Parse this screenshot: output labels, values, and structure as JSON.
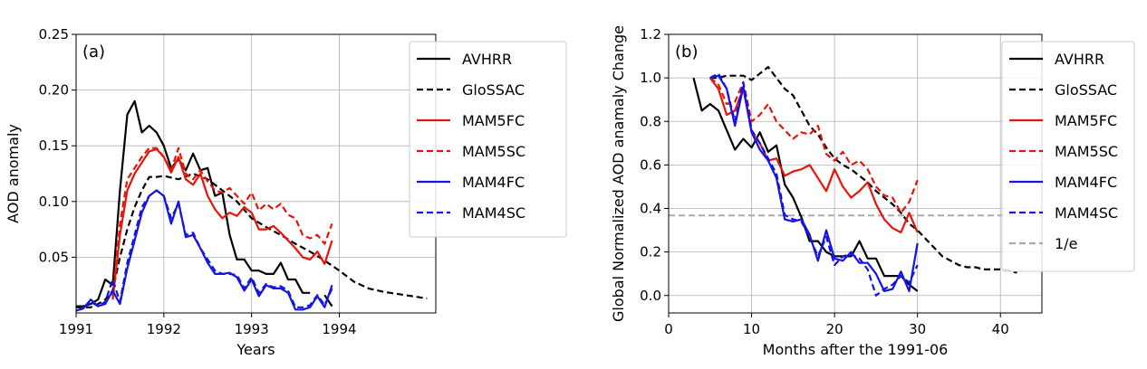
{
  "chart_data": [
    {
      "type": "line",
      "panel_label": "(a)",
      "xlabel": "Years",
      "ylabel": "AOD anomaly",
      "xlim": [
        1991,
        1995.1
      ],
      "ylim": [
        0,
        0.25
      ],
      "xticks": [
        1991,
        1992,
        1993,
        1994
      ],
      "xtick_labels": [
        "1991",
        "1992",
        "1993",
        "1994"
      ],
      "yticks": [
        0.05,
        0.1,
        0.15,
        0.2,
        0.25
      ],
      "ytick_labels": [
        "0.05",
        "0.10",
        "0.15",
        "0.20",
        "0.25"
      ],
      "grid": true,
      "legend_position": "top-right",
      "series": [
        {
          "name": "AVHRR",
          "color": "#000000",
          "dash": "solid",
          "x": [
            1991.0,
            1991.083,
            1991.167,
            1991.25,
            1991.333,
            1991.417,
            1991.5,
            1991.583,
            1991.667,
            1991.75,
            1991.833,
            1991.917,
            1992.0,
            1992.083,
            1992.167,
            1992.25,
            1992.333,
            1992.417,
            1992.5,
            1992.583,
            1992.667,
            1992.75,
            1992.833,
            1992.917,
            1993.0,
            1993.083,
            1993.167,
            1993.25,
            1993.333,
            1993.417,
            1993.5,
            1993.583,
            1993.667,
            1993.75,
            1993.833,
            1993.917
          ],
          "y": [
            0.006,
            0.006,
            0.008,
            0.012,
            0.03,
            0.025,
            0.11,
            0.178,
            0.19,
            0.162,
            0.168,
            0.162,
            0.15,
            0.13,
            0.138,
            0.128,
            0.143,
            0.128,
            0.13,
            0.105,
            0.108,
            0.07,
            0.048,
            0.048,
            0.038,
            0.038,
            0.035,
            0.035,
            0.045,
            0.03,
            0.03,
            0.018,
            0.018,
            null,
            0.016,
            0.006
          ]
        },
        {
          "name": "GloSSAC",
          "color": "#000000",
          "dash": "dashed",
          "x": [
            1991.0,
            1991.083,
            1991.167,
            1991.25,
            1991.333,
            1991.417,
            1991.5,
            1991.583,
            1991.667,
            1991.75,
            1991.833,
            1991.917,
            1992.0,
            1992.167,
            1992.333,
            1992.5,
            1992.667,
            1992.833,
            1993.0,
            1993.167,
            1993.333,
            1993.5,
            1993.667,
            1993.833,
            1994.0,
            1994.167,
            1994.333,
            1994.5,
            1994.667,
            1994.833,
            1995.0
          ],
          "y": [
            0.005,
            0.005,
            0.005,
            0.008,
            0.012,
            0.02,
            0.05,
            0.075,
            0.095,
            0.11,
            0.122,
            0.122,
            0.123,
            0.12,
            0.125,
            0.12,
            0.11,
            0.1,
            0.085,
            0.077,
            0.07,
            0.062,
            0.055,
            0.047,
            0.038,
            0.028,
            0.022,
            0.019,
            0.017,
            0.015,
            0.013
          ]
        },
        {
          "name": "MAM5FC",
          "color": "#e8140a",
          "dash": "solid",
          "x": [
            1991.417,
            1991.5,
            1991.583,
            1991.667,
            1991.75,
            1991.833,
            1991.917,
            1992.0,
            1992.083,
            1992.167,
            1992.25,
            1992.333,
            1992.417,
            1992.5,
            1992.583,
            1992.667,
            1992.75,
            1992.833,
            1992.917,
            1993.0,
            1993.083,
            1993.167,
            1993.25,
            1993.333,
            1993.417,
            1993.5,
            1993.583,
            1993.667,
            1993.75,
            1993.833,
            1993.917
          ],
          "y": [
            0.012,
            0.07,
            0.11,
            0.125,
            0.135,
            0.145,
            0.147,
            0.14,
            0.126,
            0.14,
            0.12,
            0.115,
            0.125,
            0.105,
            0.093,
            0.085,
            0.09,
            0.087,
            0.095,
            0.09,
            0.075,
            0.075,
            0.078,
            0.072,
            0.065,
            0.058,
            0.05,
            0.048,
            0.055,
            0.044,
            0.065
          ]
        },
        {
          "name": "MAM5SC",
          "color": "#e8140a",
          "dash": "dashed",
          "x": [
            1991.417,
            1991.5,
            1991.583,
            1991.667,
            1991.75,
            1991.833,
            1991.917,
            1992.0,
            1992.083,
            1992.167,
            1992.25,
            1992.333,
            1992.417,
            1992.5,
            1992.583,
            1992.667,
            1992.75,
            1992.833,
            1992.917,
            1993.0,
            1993.083,
            1993.167,
            1993.25,
            1993.333,
            1993.417,
            1993.5,
            1993.583,
            1993.667,
            1993.75,
            1993.833,
            1993.917
          ],
          "y": [
            0.015,
            0.08,
            0.12,
            0.13,
            0.14,
            0.148,
            0.148,
            0.14,
            0.128,
            0.148,
            0.125,
            0.12,
            0.128,
            0.118,
            0.11,
            0.108,
            0.112,
            0.105,
            0.098,
            0.108,
            0.092,
            0.098,
            0.093,
            0.098,
            0.088,
            0.085,
            0.07,
            0.067,
            0.07,
            0.062,
            0.08
          ]
        },
        {
          "name": "MAM4FC",
          "color": "#1414e6",
          "dash": "solid",
          "x": [
            1991.0,
            1991.083,
            1991.167,
            1991.25,
            1991.333,
            1991.417,
            1991.5,
            1991.583,
            1991.667,
            1991.75,
            1991.833,
            1991.917,
            1992.0,
            1992.083,
            1992.167,
            1992.25,
            1992.333,
            1992.417,
            1992.5,
            1992.583,
            1992.667,
            1992.75,
            1992.833,
            1992.917,
            1993.0,
            1993.083,
            1993.167,
            1993.25,
            1993.333,
            1993.417,
            1993.5,
            1993.583,
            1993.667,
            1993.75,
            1993.833,
            1993.917
          ],
          "y": [
            0.002,
            0.004,
            0.012,
            0.006,
            0.008,
            0.02,
            0.008,
            0.04,
            0.065,
            0.09,
            0.105,
            0.11,
            0.105,
            0.08,
            0.1,
            0.068,
            0.07,
            0.058,
            0.045,
            0.035,
            0.035,
            0.036,
            0.032,
            0.02,
            0.03,
            0.015,
            0.025,
            0.022,
            0.022,
            0.018,
            0.003,
            0.003,
            0.005,
            0.015,
            0.005,
            0.025
          ]
        },
        {
          "name": "MAM4SC",
          "color": "#1414e6",
          "dash": "dashed",
          "x": [
            1991.0,
            1991.083,
            1991.167,
            1991.25,
            1991.333,
            1991.417,
            1991.5,
            1991.583,
            1991.667,
            1991.75,
            1991.833,
            1991.917,
            1992.0,
            1992.083,
            1992.167,
            1992.25,
            1992.333,
            1992.417,
            1992.5,
            1992.583,
            1992.667,
            1992.75,
            1992.833,
            1992.917,
            1993.0,
            1993.083,
            1993.167,
            1993.25,
            1993.333,
            1993.417,
            1993.5,
            1993.583,
            1993.667,
            1993.75,
            1993.833,
            1993.917
          ],
          "y": [
            0.002,
            0.004,
            0.01,
            0.006,
            0.01,
            0.03,
            0.01,
            0.045,
            0.07,
            0.095,
            0.105,
            0.11,
            0.105,
            0.085,
            0.098,
            0.07,
            0.072,
            0.058,
            0.048,
            0.038,
            0.035,
            0.035,
            0.034,
            0.022,
            0.032,
            0.018,
            0.026,
            0.023,
            0.024,
            0.02,
            0.005,
            0.005,
            0.007,
            0.016,
            0.007,
            0.022
          ]
        }
      ]
    },
    {
      "type": "line",
      "panel_label": "(b)",
      "xlabel": "Months after the 1991-06",
      "ylabel": "Global Normalized AOD anamaly Change",
      "xlim": [
        0,
        45
      ],
      "ylim": [
        -0.08,
        1.2
      ],
      "xticks": [
        0,
        10,
        20,
        30,
        40
      ],
      "xtick_labels": [
        "0",
        "10",
        "20",
        "30",
        "40"
      ],
      "yticks": [
        0.0,
        0.2,
        0.4,
        0.6,
        0.8,
        1.0,
        1.2
      ],
      "ytick_labels": [
        "0.0",
        "0.2",
        "0.4",
        "0.6",
        "0.8",
        "1.0",
        "1.2"
      ],
      "grid": true,
      "legend_position": "top-right",
      "series": [
        {
          "name": "AVHRR",
          "color": "#000000",
          "dash": "solid",
          "x": [
            3,
            4,
            5,
            6,
            7,
            8,
            9,
            10,
            11,
            12,
            13,
            14,
            15,
            16,
            17,
            18,
            19,
            20,
            21,
            22,
            23,
            24,
            25,
            26,
            27,
            28,
            29,
            30
          ],
          "y": [
            1.0,
            0.85,
            0.88,
            0.85,
            0.76,
            0.67,
            0.72,
            0.68,
            0.75,
            0.66,
            0.69,
            0.51,
            0.45,
            0.36,
            0.25,
            0.25,
            0.2,
            0.18,
            0.18,
            0.18,
            0.25,
            0.17,
            0.17,
            0.09,
            0.09,
            0.09,
            0.05,
            0.02
          ]
        },
        {
          "name": "GloSSAC",
          "color": "#000000",
          "dash": "dashed",
          "x": [
            5,
            6,
            7,
            8,
            9,
            10,
            11,
            12,
            13,
            14,
            15,
            16,
            17,
            18,
            19,
            20,
            21,
            22,
            23,
            24,
            25,
            26,
            27,
            28,
            29,
            30,
            31,
            32,
            33,
            34,
            35,
            36,
            37,
            38,
            39,
            40,
            41,
            42
          ],
          "y": [
            1.0,
            1.0,
            1.01,
            1.01,
            1.01,
            0.99,
            1.02,
            1.05,
            1.0,
            0.95,
            0.92,
            0.85,
            0.78,
            0.74,
            0.68,
            0.63,
            0.6,
            0.58,
            0.55,
            0.52,
            0.48,
            0.45,
            0.42,
            0.38,
            0.33,
            0.3,
            0.26,
            0.22,
            0.18,
            0.16,
            0.14,
            0.13,
            0.13,
            0.12,
            0.12,
            0.12,
            0.115,
            0.105
          ]
        },
        {
          "name": "MAM5FC",
          "color": "#e8140a",
          "dash": "solid",
          "x": [
            5,
            6,
            7,
            8,
            9,
            10,
            11,
            12,
            13,
            14,
            15,
            16,
            17,
            18,
            19,
            20,
            21,
            22,
            23,
            24,
            25,
            26,
            27,
            28,
            29,
            30
          ],
          "y": [
            1.0,
            0.95,
            0.83,
            0.85,
            0.95,
            0.75,
            0.7,
            0.62,
            0.63,
            0.55,
            0.57,
            0.58,
            0.6,
            0.54,
            0.48,
            0.58,
            0.5,
            0.45,
            0.48,
            0.52,
            0.42,
            0.35,
            0.31,
            0.29,
            0.38,
            0.29
          ]
        },
        {
          "name": "MAM5SC",
          "color": "#e8140a",
          "dash": "dashed",
          "x": [
            5,
            6,
            7,
            8,
            9,
            10,
            11,
            12,
            13,
            14,
            15,
            16,
            17,
            18,
            19,
            20,
            21,
            22,
            23,
            24,
            25,
            26,
            27,
            28,
            29,
            30
          ],
          "y": [
            1.0,
            0.97,
            0.88,
            0.89,
            0.98,
            0.8,
            0.83,
            0.88,
            0.8,
            0.76,
            0.72,
            0.75,
            0.74,
            0.78,
            0.65,
            0.62,
            0.66,
            0.6,
            0.62,
            0.58,
            0.5,
            0.46,
            0.45,
            0.38,
            0.43,
            0.53
          ]
        },
        {
          "name": "MAM4FC",
          "color": "#1414e6",
          "dash": "solid",
          "x": [
            5,
            6,
            7,
            8,
            9,
            10,
            11,
            12,
            13,
            14,
            15,
            16,
            17,
            18,
            19,
            20,
            21,
            22,
            23,
            24,
            25,
            26,
            27,
            28,
            29,
            30
          ],
          "y": [
            1.0,
            1.01,
            0.95,
            0.78,
            0.96,
            0.75,
            0.67,
            0.62,
            0.54,
            0.35,
            0.34,
            0.35,
            0.28,
            0.16,
            0.3,
            0.17,
            0.16,
            0.2,
            0.15,
            0.15,
            0.1,
            0.02,
            0.03,
            0.11,
            0.02,
            0.24
          ]
        },
        {
          "name": "MAM4SC",
          "color": "#1414e6",
          "dash": "dashed",
          "x": [
            5,
            6,
            7,
            8,
            9,
            10,
            11,
            12,
            13,
            14,
            15,
            16,
            17,
            18,
            19,
            20,
            21,
            22,
            23,
            24,
            25,
            26,
            27,
            28,
            29,
            30
          ],
          "y": [
            1.0,
            1.02,
            0.95,
            0.8,
            0.98,
            0.76,
            0.7,
            0.63,
            0.56,
            0.37,
            0.35,
            0.34,
            0.27,
            0.18,
            0.27,
            0.14,
            0.18,
            0.19,
            0.17,
            0.12,
            0.0,
            0.03,
            0.05,
            0.09,
            0.06,
            0.14
          ]
        }
      ],
      "reference_line": {
        "name": "1/e",
        "value": 0.3679,
        "color": "#aaaaaa",
        "dash": "dashed"
      }
    }
  ]
}
